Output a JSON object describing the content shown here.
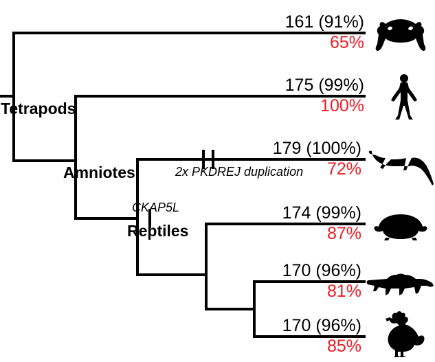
{
  "colors": {
    "line": "#000000",
    "background": "#ffffff",
    "text_black": "#000000",
    "text_red": "#ed1c24",
    "silhouette": "#000000"
  },
  "stroke_width": 4,
  "tick_width": 4,
  "fonts": {
    "clade_size": 23,
    "event_size": 18,
    "value_size": 25
  },
  "clades": {
    "tetrapods": "Tetrapods",
    "amniotes": "Amniotes",
    "reptiles": "Reptiles"
  },
  "events": {
    "ckap5l": "CKAP5L",
    "pkdrej": "2x PKDREJ duplication"
  },
  "tips": [
    {
      "count": "161",
      "pct": "(91%)",
      "red": "65%"
    },
    {
      "count": "175",
      "pct": "(99%)",
      "red": "100%"
    },
    {
      "count": "179",
      "pct": "(100%)",
      "red": "72%"
    },
    {
      "count": "174",
      "pct": "(99%)",
      "red": "87%"
    },
    {
      "count": "170",
      "pct": "(96%)",
      "red": "81%"
    },
    {
      "count": "170",
      "pct": "(96%)",
      "red": "85%"
    }
  ]
}
